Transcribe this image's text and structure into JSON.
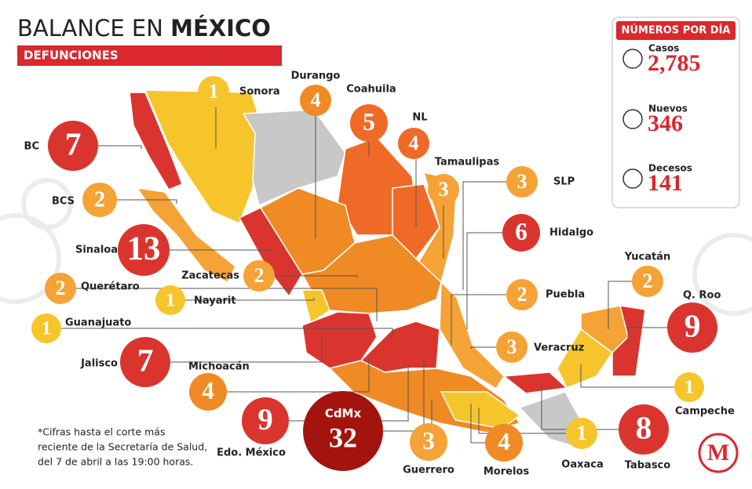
{
  "header": {
    "title_light": "BALANCE EN",
    "title_bold": "MÉXICO",
    "subtitle": "DEFUNCIONES"
  },
  "panel": {
    "title": "NÚMEROS POR DÍA",
    "items": [
      {
        "label": "Casos",
        "value": "2,785"
      },
      {
        "label": "Nuevos",
        "value": "346"
      },
      {
        "label": "Decesos",
        "value": "141"
      }
    ]
  },
  "states": [
    {
      "name": "Sonora",
      "value": 1,
      "color": "#f6c52c"
    },
    {
      "name": "Durango",
      "value": 4,
      "color": "#f08a24"
    },
    {
      "name": "Coahuila",
      "value": 5,
      "color": "#ef6a27"
    },
    {
      "name": "NL",
      "value": 4,
      "color": "#ef6a27"
    },
    {
      "name": "Tamaulipas",
      "value": 3,
      "color": "#f5a236"
    },
    {
      "name": "SLP",
      "value": 3,
      "color": "#f5a236"
    },
    {
      "name": "Hidalgo",
      "value": 6,
      "color": "#d9352e"
    },
    {
      "name": "BC",
      "value": 7,
      "color": "#d9352e"
    },
    {
      "name": "BCS",
      "value": 2,
      "color": "#f5a236"
    },
    {
      "name": "Sinaloa",
      "value": 13,
      "color": "#d9352e"
    },
    {
      "name": "Zacatecas",
      "value": 2,
      "color": "#f5a236"
    },
    {
      "name": "Querétaro",
      "value": 2,
      "color": "#f5a236"
    },
    {
      "name": "Nayarit",
      "value": 1,
      "color": "#f6c52c"
    },
    {
      "name": "Guanajuato",
      "value": 1,
      "color": "#f6c52c"
    },
    {
      "name": "Jalisco",
      "value": 7,
      "color": "#d9352e"
    },
    {
      "name": "Michoacán",
      "value": 4,
      "color": "#f08a24"
    },
    {
      "name": "Edo. México",
      "value": 9,
      "color": "#d9352e"
    },
    {
      "name": "CdMx",
      "value": 32,
      "color": "#a3140f"
    },
    {
      "name": "Guerrero",
      "value": 3,
      "color": "#f5a236"
    },
    {
      "name": "Morelos",
      "value": 4,
      "color": "#f08a24"
    },
    {
      "name": "Oaxaca",
      "value": 1,
      "color": "#f6c52c"
    },
    {
      "name": "Tabasco",
      "value": 8,
      "color": "#d9352e"
    },
    {
      "name": "Puebla",
      "value": 2,
      "color": "#f5a236"
    },
    {
      "name": "Veracruz",
      "value": 3,
      "color": "#f5a236"
    },
    {
      "name": "Yucatán",
      "value": 2,
      "color": "#f5a236"
    },
    {
      "name": "Q. Roo",
      "value": 9,
      "color": "#d9352e"
    },
    {
      "name": "Campeche",
      "value": 1,
      "color": "#f6c52c"
    }
  ],
  "footnote": [
    "*Cifras hasta el corte más",
    "reciente de la Secretaría de Salud,",
    "del 7 de abril a las 19:00 horas."
  ],
  "logo": "M"
}
